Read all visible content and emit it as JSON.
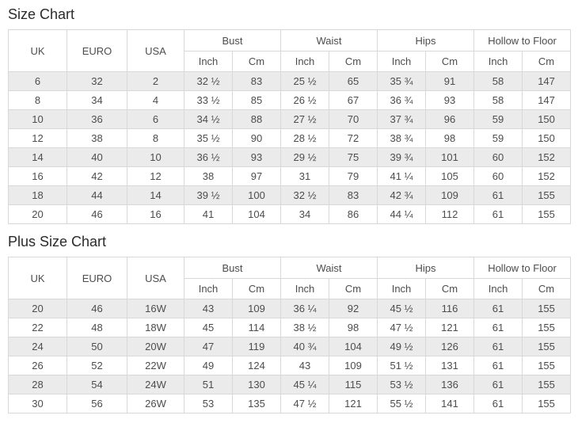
{
  "titles": {
    "size_chart": "Size Chart",
    "plus_size_chart": "Plus Size Chart"
  },
  "headers": {
    "uk": "UK",
    "euro": "EURO",
    "usa": "USA",
    "groups": [
      "Bust",
      "Waist",
      "Hips",
      "Hollow to Floor"
    ],
    "inch": "Inch",
    "cm": "Cm"
  },
  "size_chart": {
    "rows": [
      [
        "6",
        "32",
        "2",
        "32 ½",
        "83",
        "25 ½",
        "65",
        "35 ¾",
        "91",
        "58",
        "147"
      ],
      [
        "8",
        "34",
        "4",
        "33 ½",
        "85",
        "26 ½",
        "67",
        "36 ¾",
        "93",
        "58",
        "147"
      ],
      [
        "10",
        "36",
        "6",
        "34 ½",
        "88",
        "27 ½",
        "70",
        "37 ¾",
        "96",
        "59",
        "150"
      ],
      [
        "12",
        "38",
        "8",
        "35 ½",
        "90",
        "28 ½",
        "72",
        "38 ¾",
        "98",
        "59",
        "150"
      ],
      [
        "14",
        "40",
        "10",
        "36 ½",
        "93",
        "29 ½",
        "75",
        "39 ¾",
        "101",
        "60",
        "152"
      ],
      [
        "16",
        "42",
        "12",
        "38",
        "97",
        "31",
        "79",
        "41 ¼",
        "105",
        "60",
        "152"
      ],
      [
        "18",
        "44",
        "14",
        "39 ½",
        "100",
        "32 ½",
        "83",
        "42 ¾",
        "109",
        "61",
        "155"
      ],
      [
        "20",
        "46",
        "16",
        "41",
        "104",
        "34",
        "86",
        "44 ¼",
        "112",
        "61",
        "155"
      ]
    ]
  },
  "plus_size_chart": {
    "rows": [
      [
        "20",
        "46",
        "16W",
        "43",
        "109",
        "36 ¼",
        "92",
        "45 ½",
        "116",
        "61",
        "155"
      ],
      [
        "22",
        "48",
        "18W",
        "45",
        "114",
        "38 ½",
        "98",
        "47 ½",
        "121",
        "61",
        "155"
      ],
      [
        "24",
        "50",
        "20W",
        "47",
        "119",
        "40 ¾",
        "104",
        "49 ½",
        "126",
        "61",
        "155"
      ],
      [
        "26",
        "52",
        "22W",
        "49",
        "124",
        "43",
        "109",
        "51 ½",
        "131",
        "61",
        "155"
      ],
      [
        "28",
        "54",
        "24W",
        "51",
        "130",
        "45 ¼",
        "115",
        "53 ½",
        "136",
        "61",
        "155"
      ],
      [
        "30",
        "56",
        "26W",
        "53",
        "135",
        "47 ½",
        "121",
        "55 ½",
        "141",
        "61",
        "155"
      ]
    ]
  },
  "chart_data": [
    {
      "type": "table",
      "title": "Size Chart",
      "columns": [
        "UK",
        "EURO",
        "USA",
        "Bust Inch",
        "Bust Cm",
        "Waist Inch",
        "Waist Cm",
        "Hips Inch",
        "Hips Cm",
        "Hollow to Floor Inch",
        "Hollow to Floor Cm"
      ],
      "rows": [
        [
          "6",
          "32",
          "2",
          "32 ½",
          "83",
          "25 ½",
          "65",
          "35 ¾",
          "91",
          "58",
          "147"
        ],
        [
          "8",
          "34",
          "4",
          "33 ½",
          "85",
          "26 ½",
          "67",
          "36 ¾",
          "93",
          "58",
          "147"
        ],
        [
          "10",
          "36",
          "6",
          "34 ½",
          "88",
          "27 ½",
          "70",
          "37 ¾",
          "96",
          "59",
          "150"
        ],
        [
          "12",
          "38",
          "8",
          "35 ½",
          "90",
          "28 ½",
          "72",
          "38 ¾",
          "98",
          "59",
          "150"
        ],
        [
          "14",
          "40",
          "10",
          "36 ½",
          "93",
          "29 ½",
          "75",
          "39 ¾",
          "101",
          "60",
          "152"
        ],
        [
          "16",
          "42",
          "12",
          "38",
          "97",
          "31",
          "79",
          "41 ¼",
          "105",
          "60",
          "152"
        ],
        [
          "18",
          "44",
          "14",
          "39 ½",
          "100",
          "32 ½",
          "83",
          "42 ¾",
          "109",
          "61",
          "155"
        ],
        [
          "20",
          "46",
          "16",
          "41",
          "104",
          "34",
          "86",
          "44 ¼",
          "112",
          "61",
          "155"
        ]
      ]
    },
    {
      "type": "table",
      "title": "Plus Size Chart",
      "columns": [
        "UK",
        "EURO",
        "USA",
        "Bust Inch",
        "Bust Cm",
        "Waist Inch",
        "Waist Cm",
        "Hips Inch",
        "Hips Cm",
        "Hollow to Floor Inch",
        "Hollow to Floor Cm"
      ],
      "rows": [
        [
          "20",
          "46",
          "16W",
          "43",
          "109",
          "36 ¼",
          "92",
          "45 ½",
          "116",
          "61",
          "155"
        ],
        [
          "22",
          "48",
          "18W",
          "45",
          "114",
          "38 ½",
          "98",
          "47 ½",
          "121",
          "61",
          "155"
        ],
        [
          "24",
          "50",
          "20W",
          "47",
          "119",
          "40 ¾",
          "104",
          "49 ½",
          "126",
          "61",
          "155"
        ],
        [
          "26",
          "52",
          "22W",
          "49",
          "124",
          "43",
          "109",
          "51 ½",
          "131",
          "61",
          "155"
        ],
        [
          "28",
          "54",
          "24W",
          "51",
          "130",
          "45 ¼",
          "115",
          "53 ½",
          "136",
          "61",
          "155"
        ],
        [
          "30",
          "56",
          "26W",
          "53",
          "135",
          "47 ½",
          "121",
          "55 ½",
          "141",
          "61",
          "155"
        ]
      ]
    }
  ],
  "colors": {
    "stripe_row": "#ebebeb",
    "border": "#d8d8d8",
    "text": "#4d4d4d",
    "title_text": "#2b2b2b",
    "background": "#ffffff"
  }
}
